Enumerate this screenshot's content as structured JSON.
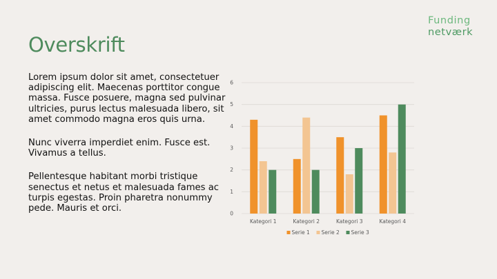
{
  "logo": {
    "line1": "Funding",
    "line2": "netværk"
  },
  "slide": {
    "title": "Overskrift",
    "paragraphs": [
      "Lorem ipsum dolor sit amet, consectetuer adipiscing elit. Maecenas porttitor congue massa. Fusce posuere, magna sed pulvinar ultricies, purus lectus malesuada libero, sit amet commodo magna eros quis urna.",
      "Nunc viverra imperdiet enim. Fusce est. Vivamus a tellus.",
      "Pellentesque habitant morbi tristique senectus et netus et malesuada fames ac turpis egestas. Proin pharetra nonummy pede. Mauris et orci."
    ]
  },
  "chart_data": {
    "type": "bar",
    "categories": [
      "Kategori 1",
      "Kategori 2",
      "Kategori 3",
      "Kategori 4"
    ],
    "series": [
      {
        "name": "Serie 1",
        "values": [
          4.3,
          2.5,
          3.5,
          4.5
        ],
        "color": "#f0922b"
      },
      {
        "name": "Serie 2",
        "values": [
          2.4,
          4.4,
          1.8,
          2.8
        ],
        "color": "#f3c592"
      },
      {
        "name": "Serie 3",
        "values": [
          2.0,
          2.0,
          3.0,
          5.0
        ],
        "color": "#4e8b5d"
      }
    ],
    "ylim": [
      0,
      6
    ],
    "yticks": [
      0,
      1,
      2,
      3,
      4,
      5,
      6
    ],
    "grid": true,
    "legend": "bottom",
    "gridColor": "#dcd8d4"
  }
}
